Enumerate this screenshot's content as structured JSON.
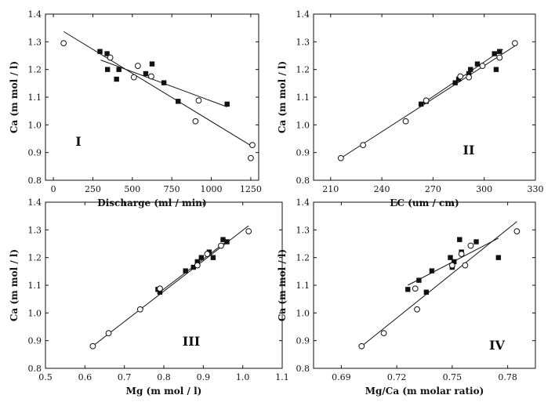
{
  "chart_data": [
    {
      "type": "scatter",
      "panel_label": "I",
      "xlabel": "Discharge (ml / min)",
      "ylabel": "Ca (m mol / l)",
      "xlim": [
        -50,
        1300
      ],
      "ylim": [
        0.8,
        1.4
      ],
      "xticks": [
        0,
        250,
        500,
        750,
        1000,
        1250
      ],
      "yticks": [
        0.8,
        0.9,
        1.0,
        1.1,
        1.2,
        1.3,
        1.4
      ],
      "series": [
        {
          "marker": "square",
          "x": [
            295,
            340,
            343,
            400,
            415,
            585,
            625,
            700,
            790,
            1100
          ],
          "y": [
            1.265,
            1.257,
            1.2,
            1.165,
            1.2,
            1.185,
            1.22,
            1.152,
            1.085,
            1.075
          ],
          "fit": [
            [
              300,
              1.234
            ],
            [
              1100,
              1.065
            ]
          ]
        },
        {
          "marker": "circle",
          "x": [
            65,
            360,
            510,
            535,
            620,
            900,
            920,
            1250,
            1260
          ],
          "y": [
            1.295,
            1.243,
            1.172,
            1.213,
            1.175,
            1.013,
            1.088,
            0.88,
            0.927
          ],
          "fit": [
            [
              65,
              1.337
            ],
            [
              1260,
              0.922
            ]
          ]
        }
      ]
    },
    {
      "type": "scatter",
      "panel_label": "II",
      "xlabel": "EC (um / cm)",
      "ylabel": "Ca (m mol / l)",
      "xlim": [
        200,
        330
      ],
      "ylim": [
        0.8,
        1.4
      ],
      "xticks": [
        210,
        240,
        270,
        300,
        330
      ],
      "yticks": [
        0.8,
        0.9,
        1.0,
        1.1,
        1.2,
        1.3,
        1.4
      ],
      "series": [
        {
          "marker": "square",
          "x": [
            263,
            266,
            283,
            285,
            291,
            292,
            296,
            306,
            307,
            309
          ],
          "y": [
            1.075,
            1.085,
            1.152,
            1.165,
            1.185,
            1.2,
            1.22,
            1.257,
            1.2,
            1.265
          ],
          "fit": [
            [
              263,
              1.073
            ],
            [
              311,
              1.273
            ]
          ]
        },
        {
          "marker": "circle",
          "x": [
            216,
            229,
            254,
            266,
            286,
            291,
            299,
            309,
            318
          ],
          "y": [
            0.88,
            0.927,
            1.013,
            1.088,
            1.175,
            1.172,
            1.213,
            1.243,
            1.295
          ],
          "fit": [
            [
              216,
              0.88
            ],
            [
              318,
              1.285
            ]
          ]
        }
      ]
    },
    {
      "type": "scatter",
      "panel_label": "III",
      "xlabel": "Mg  (m mol / l)",
      "ylabel": "Ca (m mol / l)",
      "xlim": [
        0.5,
        1.1
      ],
      "ylim": [
        0.8,
        1.4
      ],
      "xticks": [
        0.5,
        0.6,
        0.7,
        0.8,
        0.9,
        1.0,
        1.1
      ],
      "yticks": [
        0.8,
        0.9,
        1.0,
        1.1,
        1.2,
        1.3,
        1.4
      ],
      "series": [
        {
          "marker": "square",
          "x": [
            0.785,
            0.79,
            0.855,
            0.875,
            0.885,
            0.895,
            0.915,
            0.925,
            0.95,
            0.96
          ],
          "y": [
            1.085,
            1.075,
            1.152,
            1.165,
            1.185,
            1.2,
            1.22,
            1.2,
            1.265,
            1.257
          ],
          "fit": [
            [
              0.785,
              1.07
            ],
            [
              0.965,
              1.265
            ]
          ]
        },
        {
          "marker": "circle",
          "x": [
            0.62,
            0.66,
            0.74,
            0.79,
            0.885,
            0.91,
            0.945,
            1.015
          ],
          "y": [
            0.88,
            0.927,
            1.013,
            1.088,
            1.172,
            1.213,
            1.243,
            1.295
          ],
          "fit": [
            [
              0.615,
              0.875
            ],
            [
              1.015,
              1.315
            ]
          ]
        }
      ]
    },
    {
      "type": "scatter",
      "panel_label": "IV",
      "xlabel": "Mg/Ca (m molar ratio)",
      "ylabel": "Ca (m mol / l)",
      "xlim": [
        0.675,
        0.795
      ],
      "ylim": [
        0.8,
        1.4
      ],
      "xticks": [
        0.69,
        0.72,
        0.75,
        0.78
      ],
      "yticks": [
        0.8,
        0.9,
        1.0,
        1.1,
        1.2,
        1.3,
        1.4
      ],
      "series": [
        {
          "marker": "square",
          "x": [
            0.726,
            0.732,
            0.736,
            0.739,
            0.749,
            0.75,
            0.751,
            0.754,
            0.755,
            0.763,
            0.775
          ],
          "y": [
            1.085,
            1.118,
            1.075,
            1.152,
            1.2,
            1.165,
            1.185,
            1.265,
            1.22,
            1.257,
            1.2
          ],
          "fit": [
            [
              0.726,
              1.1
            ],
            [
              0.775,
              1.27
            ]
          ]
        },
        {
          "marker": "circle",
          "x": [
            0.701,
            0.713,
            0.73,
            0.731,
            0.75,
            0.755,
            0.757,
            0.76,
            0.785
          ],
          "y": [
            0.88,
            0.927,
            1.088,
            1.013,
            1.172,
            1.213,
            1.172,
            1.243,
            1.295
          ],
          "fit": [
            [
              0.701,
              0.88
            ],
            [
              0.785,
              1.33
            ]
          ]
        }
      ]
    }
  ]
}
